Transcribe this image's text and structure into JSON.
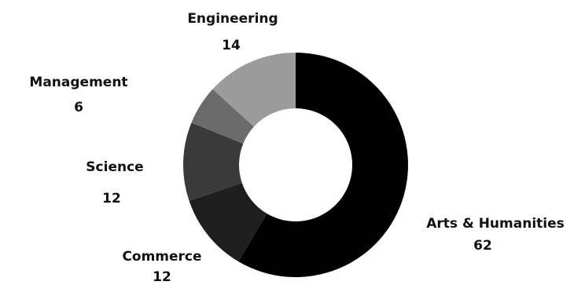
{
  "chart_data": {
    "type": "pie",
    "variant": "donut",
    "title": "",
    "legend": "none",
    "slices": [
      {
        "label": "Arts & Humanities",
        "value": 62,
        "value_label": "62",
        "color": "#000000"
      },
      {
        "label": "Commerce",
        "value": 12,
        "value_label": "12",
        "color": "#1e1e1e"
      },
      {
        "label": "Science",
        "value": 12,
        "value_label": "12",
        "color": "#3a3a3a"
      },
      {
        "label": "Management",
        "value": 6,
        "value_label": "6",
        "color": "#6b6b6b"
      },
      {
        "label": "Engineering",
        "value": 14,
        "value_label": "14",
        "color": "#9b9b9b"
      }
    ]
  }
}
